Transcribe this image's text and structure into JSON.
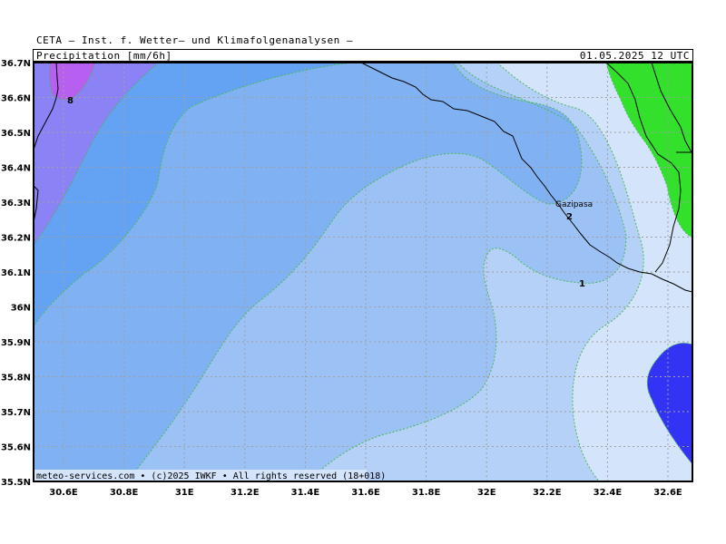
{
  "header": {
    "institute": "CETA — Inst. f. Wetter— und Klimafolgenanalysen —",
    "parameter": "Precipitation [mm/6h]",
    "datetime": "01.05.2025 12 UTC"
  },
  "axes": {
    "lat_labels": [
      "36.7N",
      "36.6N",
      "36.5N",
      "36.4N",
      "36.3N",
      "36.2N",
      "36.1N",
      "36N",
      "35.9N",
      "35.8N",
      "35.7N",
      "35.6N",
      "35.5N"
    ],
    "lon_labels": [
      "30.6E",
      "30.8E",
      "31E",
      "31.2E",
      "31.4E",
      "31.6E",
      "31.8E",
      "32E",
      "32.2E",
      "32.4E",
      "32.6E"
    ]
  },
  "map": {
    "place": "Gazipasa",
    "contour_labels": [
      "8",
      "2",
      "1"
    ],
    "copyright": "meteo-services.com • (c)2025 IWKF • All rights reserved (18+018)"
  },
  "colors": {
    "lvl_0": "#d4e4fb",
    "lvl_1": "#b6d1f7",
    "lvl_2": "#9cc1f5",
    "lvl_3": "#80b1f2",
    "lvl_4": "#64a3f4",
    "lvl_6": "#8b82f5",
    "lvl_8": "#b65ff0",
    "green": "#33e02c",
    "blue": "#3333f6",
    "grid": "#a0a0a0",
    "contour": "#44bb55"
  }
}
